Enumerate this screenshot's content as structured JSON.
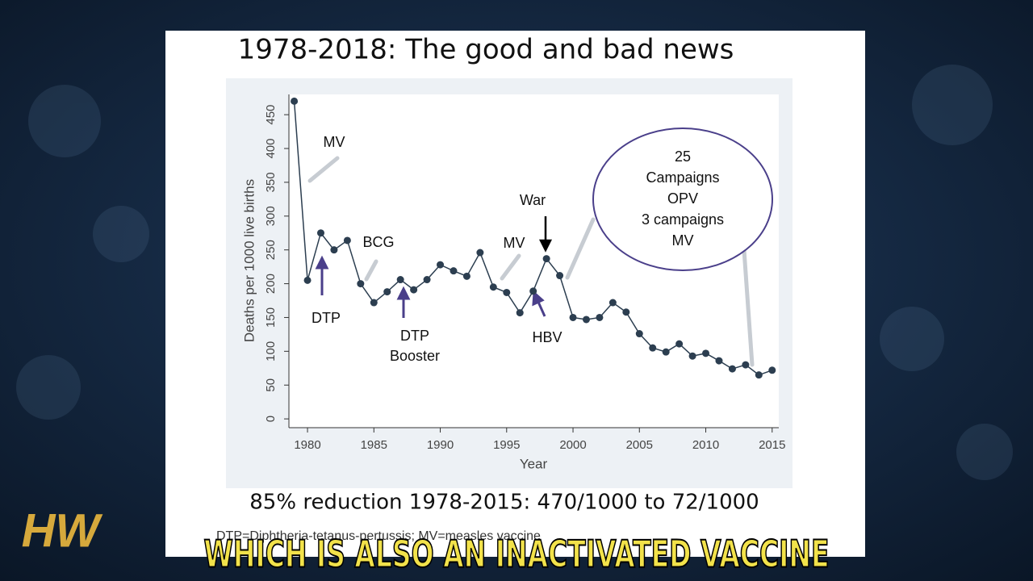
{
  "chart_data": {
    "type": "line",
    "title": "1978-2018: The good and bad news",
    "subtitle": "85% reduction 1978-2015: 470/1000 to 72/1000",
    "footnote": "DTP=Diphtheria-tetanus-pertussis; MV=measles vaccine",
    "x_label": "Year",
    "y_label": "Deaths per 1000 live births",
    "x": [
      1979,
      1980,
      1981,
      1982,
      1983,
      1984,
      1985,
      1986,
      1987,
      1988,
      1989,
      1990,
      1991,
      1992,
      1993,
      1994,
      1995,
      1996,
      1997,
      1998,
      1999,
      2000,
      2001,
      2002,
      2003,
      2004,
      2005,
      2006,
      2007,
      2008,
      2009,
      2010,
      2011,
      2012,
      2013,
      2014,
      2015
    ],
    "series": [
      {
        "name": "Deaths per 1000 live births",
        "color": "#2c3e50",
        "values": [
          470,
          205,
          275,
          250,
          264,
          200,
          172,
          188,
          206,
          191,
          206,
          228,
          219,
          211,
          246,
          195,
          187,
          157,
          189,
          237,
          212,
          150,
          147,
          150,
          172,
          158,
          126,
          105,
          99,
          111,
          93,
          97,
          86,
          74,
          80,
          65,
          72
        ]
      }
    ],
    "xlim": [
      1978.6,
      2015.5
    ],
    "ylim": [
      -13,
      480
    ],
    "xticks": [
      1980,
      1985,
      1990,
      1995,
      2000,
      2005,
      2010,
      2015
    ],
    "yticks": [
      0,
      50,
      100,
      150,
      200,
      250,
      300,
      350,
      400,
      450
    ],
    "annotations": [
      {
        "lines": [
          "MV"
        ]
      },
      {
        "lines": [
          "DTP"
        ]
      },
      {
        "lines": [
          "BCG"
        ]
      },
      {
        "lines": [
          "DTP",
          "Booster"
        ]
      },
      {
        "lines": [
          "MV"
        ]
      },
      {
        "lines": [
          "War"
        ]
      },
      {
        "lines": [
          "HBV"
        ]
      },
      {
        "lines": [
          "25",
          "Campaigns",
          "OPV",
          "3 campaigns",
          "MV"
        ]
      }
    ]
  },
  "caption": "WHICH IS ALSO AN INACTIVATED VACCINE",
  "logo": "HW"
}
